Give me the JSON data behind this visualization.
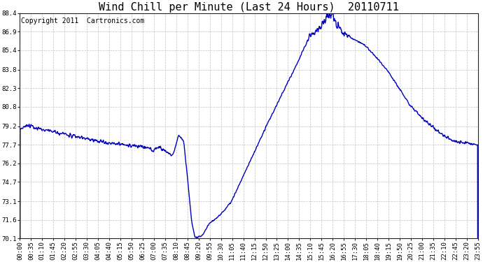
{
  "title": "Wind Chill per Minute (Last 24 Hours)  20110711",
  "copyright_text": "Copyright 2011  Cartronics.com",
  "line_color": "#0000bb",
  "background_color": "#ffffff",
  "grid_color": "#bbbbbb",
  "ylim": [
    70.1,
    88.4
  ],
  "yticks": [
    70.1,
    71.6,
    73.1,
    74.7,
    76.2,
    77.7,
    79.2,
    80.8,
    82.3,
    83.8,
    85.4,
    86.9,
    88.4
  ],
  "xtick_labels": [
    "00:00",
    "00:35",
    "01:10",
    "01:45",
    "02:20",
    "02:55",
    "03:30",
    "04:05",
    "04:40",
    "05:15",
    "05:50",
    "06:25",
    "07:00",
    "07:35",
    "08:10",
    "08:45",
    "09:20",
    "09:55",
    "10:30",
    "11:05",
    "11:40",
    "12:15",
    "12:50",
    "13:25",
    "14:00",
    "14:35",
    "15:10",
    "15:45",
    "16:20",
    "16:55",
    "17:30",
    "18:05",
    "18:40",
    "19:15",
    "19:50",
    "20:25",
    "21:00",
    "21:35",
    "22:10",
    "22:45",
    "23:20",
    "23:55"
  ],
  "title_fontsize": 11,
  "copyright_fontsize": 7,
  "tick_fontsize": 6.5,
  "line_width": 1.0,
  "figsize": [
    6.9,
    3.75
  ],
  "dpi": 100
}
